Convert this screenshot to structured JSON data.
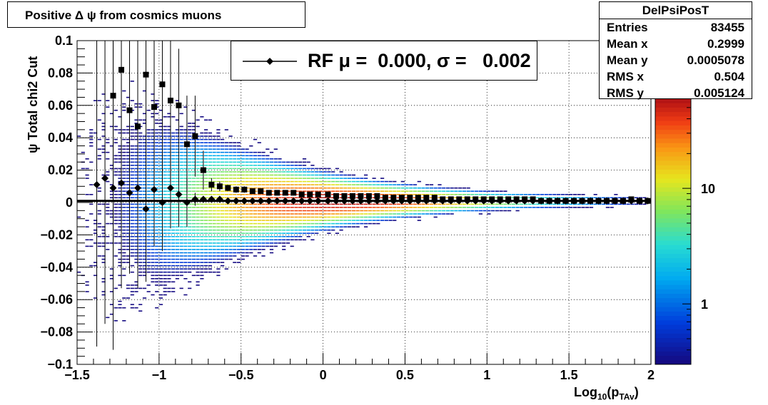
{
  "title": "Positive Δ ψ from cosmics muons",
  "stats": {
    "name": "DelPsiPosT",
    "rows": [
      {
        "label": "Entries",
        "value": "83455"
      },
      {
        "label": "Mean x",
        "value": "0.2999"
      },
      {
        "label": "Mean y",
        "value": "0.0005078"
      },
      {
        "label": "RMS x",
        "value": "0.504"
      },
      {
        "label": "RMS y",
        "value": "0.005124"
      }
    ]
  },
  "legend": {
    "text": "RF μ =  0.000, σ =   0.002"
  },
  "axes": {
    "xlabel": "Log",
    "xlabel_sub1": "10",
    "xlabel_mid": "(p",
    "xlabel_sub2": "TAv",
    "xlabel_end": ")",
    "ylabel": "ψ  Total chi2 Cut",
    "xticks": [
      "−1.5",
      "−1",
      "−0.5",
      "0",
      "0.5",
      "1",
      "1.5",
      "2"
    ],
    "yticks": [
      "−0.1",
      "−0.08",
      "−0.06",
      "−0.04",
      "−0.02",
      "0",
      "0.02",
      "0.04",
      "0.06",
      "0.08",
      "0.1"
    ],
    "zticks": [
      "1",
      "10"
    ]
  },
  "chart_data": {
    "type": "heatmap",
    "title": "Positive Δ ψ from cosmics muons",
    "xlabel": "Log10(pTAv)",
    "ylabel": "ψ  Total chi2 Cut",
    "xlim": [
      -1.5,
      2.0
    ],
    "ylim": [
      -0.1,
      0.1
    ],
    "zscale": "log",
    "zlim": [
      0.3,
      60
    ],
    "grid": true,
    "colors": {
      "square_markers": "#000000",
      "diamond_markers": "#000000",
      "fit_line": "#000000",
      "palette": "rainbow"
    },
    "series": [
      {
        "name": "squares",
        "x": [
          -1.28,
          -1.23,
          -1.18,
          -1.13,
          -1.08,
          -1.03,
          -0.98,
          -0.93,
          -0.88,
          -0.83,
          -0.78,
          -0.73,
          -0.68,
          -0.63,
          -0.58,
          -0.53,
          -0.48,
          -0.43,
          -0.38,
          -0.33,
          -0.28,
          -0.23,
          -0.18,
          -0.13,
          -0.08,
          -0.03,
          0.03,
          0.08,
          0.13,
          0.18,
          0.23,
          0.28,
          0.33,
          0.38,
          0.43,
          0.48,
          0.53,
          0.58,
          0.63,
          0.68,
          0.73,
          0.78,
          0.83,
          0.88,
          0.93,
          0.98,
          1.03,
          1.08,
          1.13,
          1.18,
          1.23,
          1.28,
          1.33,
          1.38,
          1.43,
          1.48,
          1.53,
          1.58,
          1.63,
          1.68,
          1.73,
          1.78,
          1.83,
          1.88,
          1.93,
          1.98
        ],
        "y": [
          0.066,
          0.082,
          0.057,
          0.047,
          0.079,
          0.059,
          0.073,
          0.063,
          0.06,
          0.036,
          0.041,
          0.02,
          0.011,
          0.01,
          0.009,
          0.008,
          0.008,
          0.007,
          0.007,
          0.006,
          0.006,
          0.006,
          0.006,
          0.005,
          0.005,
          0.005,
          0.005,
          0.004,
          0.004,
          0.004,
          0.004,
          0.004,
          0.004,
          0.003,
          0.003,
          0.003,
          0.003,
          0.003,
          0.003,
          0.003,
          0.002,
          0.002,
          0.002,
          0.002,
          0.002,
          0.002,
          0.002,
          0.002,
          0.002,
          0.002,
          0.002,
          0.002,
          0.001,
          0.001,
          0.001,
          0.001,
          0.001,
          0.001,
          0.001,
          0.001,
          0.001,
          0.001,
          0.001,
          0.002,
          0.001,
          0.001
        ],
        "err": [
          0.1,
          0.1,
          0.1,
          0.1,
          0.1,
          0.06,
          0.06,
          0.05,
          0.035,
          0.03,
          0.025,
          0.012,
          0.004,
          0.003,
          0.002,
          0.002,
          0.002,
          0.001,
          0.001,
          0.001,
          0.001,
          0.001,
          0.001,
          0.001,
          0.001,
          0.001,
          0.001,
          0.001,
          0.001,
          0.001,
          0.001,
          0.001,
          0.001,
          0.001,
          0.001,
          0.001,
          0.001,
          0.001,
          0.001,
          0.001,
          0.001,
          0.001,
          0.001,
          0.001,
          0.001,
          0.001,
          0.001,
          0.001,
          0.001,
          0.001,
          0.001,
          0.001,
          0.001,
          0.001,
          0.001,
          0.001,
          0.001,
          0.001,
          0.001,
          0.001,
          0.001,
          0.001,
          0.001,
          0.001,
          0.001,
          0.001
        ]
      },
      {
        "name": "diamonds",
        "x": [
          -1.38,
          -1.33,
          -1.28,
          -1.23,
          -1.18,
          -1.13,
          -1.08,
          -1.03,
          -0.98,
          -0.93,
          -0.88,
          -0.83,
          -0.78,
          -0.73,
          -0.68,
          -0.63,
          -0.58,
          -0.53,
          -0.48,
          -0.43,
          -0.38,
          -0.33,
          -0.28,
          -0.23,
          -0.18,
          -0.13,
          -0.08,
          -0.03,
          0.03,
          0.08,
          0.13,
          0.18,
          0.23,
          0.28,
          0.33,
          0.38,
          0.43,
          0.48,
          0.53,
          0.58,
          0.63,
          0.68,
          0.73,
          0.78,
          0.83,
          0.88,
          0.93,
          0.98,
          1.03,
          1.08,
          1.13,
          1.18,
          1.23,
          1.28,
          1.33,
          1.38,
          1.43,
          1.48,
          1.53,
          1.58,
          1.63,
          1.68,
          1.73,
          1.78,
          1.83,
          1.88,
          1.93,
          1.98
        ],
        "y": [
          0.011,
          0.015,
          0.009,
          0.012,
          0.006,
          0.009,
          -0.004,
          0.008,
          0.0,
          0.009,
          0.005,
          0.0,
          0.002,
          0.002,
          0.002,
          0.002,
          0.001,
          0.001,
          0.001,
          0.001,
          0.001,
          0.001,
          0.001,
          0.001,
          0.001,
          0.001,
          0.001,
          0.001,
          0.001,
          0.001,
          0.001,
          0.001,
          0.001,
          0.001,
          0.001,
          0.001,
          0.001,
          0.001,
          0.001,
          0.001,
          0.001,
          0.001,
          0.001,
          0.001,
          0.001,
          0.001,
          0.001,
          0.001,
          0.001,
          0.001,
          0.001,
          0.001,
          0.001,
          0.001,
          0.001,
          0.001,
          0.001,
          0.001,
          0.001,
          0.001,
          0.001,
          0.001,
          0.001,
          0.001,
          0.001,
          0.001,
          0.001,
          0.001
        ],
        "err": [
          0.1,
          0.09,
          0.1,
          0.065,
          0.05,
          0.04,
          0.045,
          0.035,
          0.03,
          0.025,
          0.02,
          0.015,
          0.004,
          0.002,
          0.001,
          0.001,
          0.001,
          0.001,
          0.001,
          0.001,
          0.001,
          0.001,
          0.001,
          0.001,
          0.001,
          0.001,
          0.001,
          0.001,
          0.001,
          0.001,
          0.001,
          0.001,
          0.001,
          0.001,
          0.001,
          0.001,
          0.001,
          0.001,
          0.001,
          0.001,
          0.001,
          0.001,
          0.001,
          0.001,
          0.001,
          0.001,
          0.001,
          0.001,
          0.001,
          0.001,
          0.001,
          0.001,
          0.001,
          0.001,
          0.001,
          0.001,
          0.001,
          0.001,
          0.001,
          0.001,
          0.001,
          0.001,
          0.001,
          0.001,
          0.001,
          0.001,
          0.001,
          0.001
        ]
      }
    ],
    "fit_line": {
      "y": 0.001,
      "x_range": [
        -1.5,
        2.0
      ]
    }
  }
}
